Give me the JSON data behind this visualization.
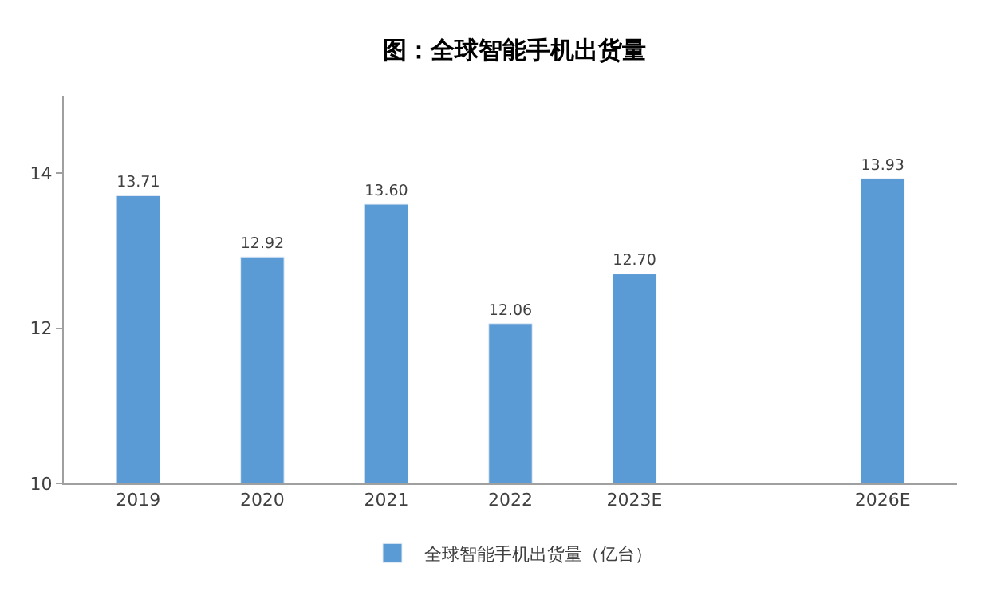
{
  "chart_data": {
    "type": "bar",
    "title": "图：全球智能手机出货量",
    "categories": [
      "2019",
      "2020",
      "2021",
      "2022",
      "2023E",
      null,
      "2026E"
    ],
    "series": [
      {
        "name": "全球智能手机出货量（亿台）",
        "color": "#5b9bd5",
        "values": [
          13.71,
          12.92,
          13.6,
          12.06,
          12.7,
          null,
          13.93
        ],
        "value_labels": [
          "13.71",
          "12.92",
          "13.60",
          "12.06",
          "12.70",
          null,
          "13.93"
        ]
      }
    ],
    "ylim": [
      10,
      15
    ],
    "yticks": [
      10,
      12,
      14
    ],
    "grid": false,
    "legend": "bottom"
  }
}
